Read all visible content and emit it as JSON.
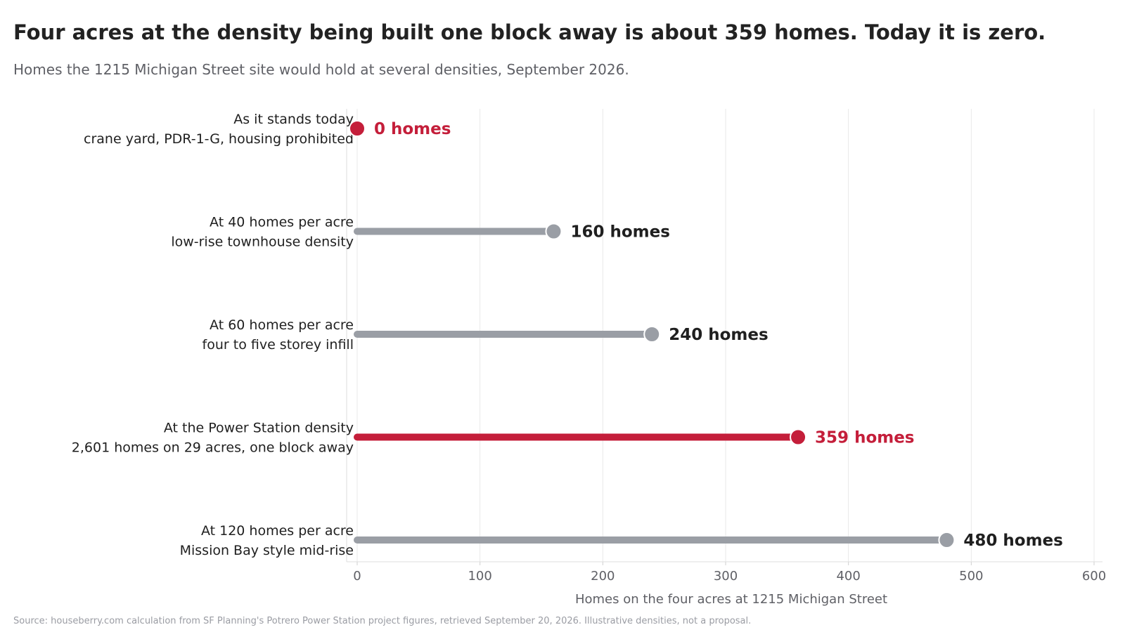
{
  "header": {
    "title": "Four acres at the density being built one block away is about 359 homes. Today it is zero.",
    "subtitle": "Homes the 1215 Michigan Street site would hold at several densities, September 2026."
  },
  "footer": {
    "source": "Source: houseberry.com calculation from SF Planning's Potrero Power Station project figures, retrieved September 20, 2026. Illustrative densities, not a proposal."
  },
  "colors": {
    "highlight": "#c41e3a",
    "muted": "#9a9ea5",
    "text": "#1f1f1f",
    "axis_text": "#5f6066",
    "grid": "#e9e9e9"
  },
  "chart_data": {
    "type": "bar",
    "orientation": "horizontal",
    "style": "lollipop",
    "xlabel": "Homes on the four acres at 1215 Michigan Street",
    "xlim": [
      0,
      600
    ],
    "xticks": [
      0,
      100,
      200,
      300,
      400,
      500,
      600
    ],
    "grid": "vertical",
    "categories": [
      {
        "line1": "As it stands today",
        "line2": "crane yard, PDR-1-G, housing prohibited",
        "value": 0,
        "label": "0 homes",
        "highlight": true
      },
      {
        "line1": "At 40 homes per acre",
        "line2": "low-rise townhouse density",
        "value": 160,
        "label": "160 homes",
        "highlight": false
      },
      {
        "line1": "At 60 homes per acre",
        "line2": "four to five storey infill",
        "value": 240,
        "label": "240 homes",
        "highlight": false
      },
      {
        "line1": "At the Power Station density",
        "line2": "2,601 homes on 29 acres, one block away",
        "value": 359,
        "label": "359 homes",
        "highlight": true
      },
      {
        "line1": "At 120 homes per acre",
        "line2": "Mission Bay style mid-rise",
        "value": 480,
        "label": "480 homes",
        "highlight": false
      }
    ]
  }
}
